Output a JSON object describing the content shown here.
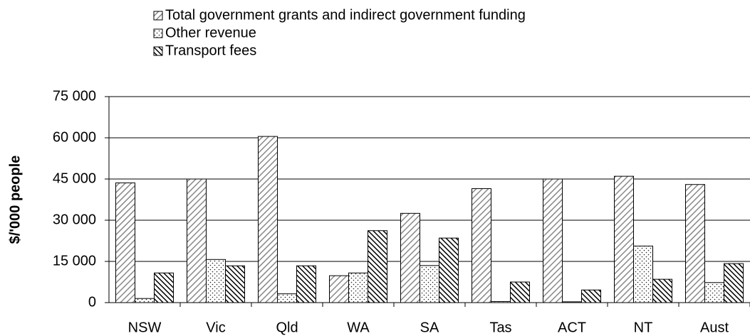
{
  "chart_data": {
    "type": "bar",
    "y_label": "$/'000 people",
    "categories": [
      "NSW",
      "Vic",
      "Qld",
      "WA",
      "SA",
      "Tas",
      "ACT",
      "NT",
      "Aust"
    ],
    "series": [
      {
        "name": "Total government grants and indirect government funding",
        "values": [
          43600,
          45000,
          60500,
          9800,
          32500,
          41500,
          45000,
          46000,
          43000
        ]
      },
      {
        "name": "Other revenue",
        "values": [
          1500,
          15700,
          3200,
          10800,
          13500,
          400,
          300,
          20600,
          7300
        ]
      },
      {
        "name": "Transport fees",
        "values": [
          10800,
          13400,
          13400,
          26200,
          23500,
          7500,
          4600,
          8500,
          14200
        ]
      }
    ],
    "ylim": [
      0,
      75000
    ],
    "yticks": [
      {
        "value": 0,
        "label": "0"
      },
      {
        "value": 15000,
        "label": "15 000"
      },
      {
        "value": 30000,
        "label": "30 000"
      },
      {
        "value": 45000,
        "label": "45 000"
      },
      {
        "value": 60000,
        "label": "60 000"
      },
      {
        "value": 75000,
        "label": "75 000"
      }
    ],
    "grid": true
  }
}
